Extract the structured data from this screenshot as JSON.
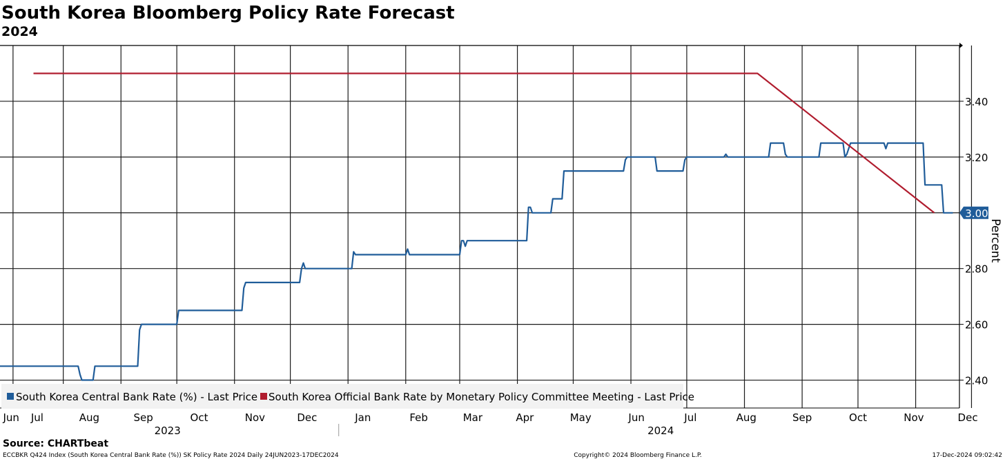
{
  "title": "South Korea Bloomberg Policy Rate Forecast",
  "subtitle": "2024",
  "source": "Source: CHARTbeat",
  "footer": {
    "left": "ECCBKR Q424 Index (South Korea Central Bank Rate (%)) SK Policy Rate 2024  Daily 24JUN2023-17DEC2024",
    "center": "Copyright© 2024 Bloomberg Finance L.P.",
    "right": "17-Dec-2024 09:02:42"
  },
  "chart_data": {
    "type": "line",
    "ylabel": "Percent",
    "ylim": [
      2.3,
      3.6
    ],
    "yticks": [
      2.4,
      2.6,
      2.8,
      3.0,
      3.2,
      3.4
    ],
    "ytick_labels": [
      "2.40",
      "2.60",
      "2.80",
      "3.00",
      "3.20",
      "3.40"
    ],
    "xlim": [
      0,
      540
    ],
    "month_labels": [
      {
        "label": "Jun",
        "x": 6
      },
      {
        "label": "Jul",
        "x": 20
      },
      {
        "label": "Aug",
        "x": 48
      },
      {
        "label": "Sep",
        "x": 77
      },
      {
        "label": "Oct",
        "x": 107
      },
      {
        "label": "Nov",
        "x": 137
      },
      {
        "label": "Dec",
        "x": 165
      },
      {
        "label": "Jan",
        "x": 195
      },
      {
        "label": "Feb",
        "x": 225
      },
      {
        "label": "Mar",
        "x": 254
      },
      {
        "label": "Apr",
        "x": 282
      },
      {
        "label": "May",
        "x": 312
      },
      {
        "label": "Jun",
        "x": 342
      },
      {
        "label": "Jul",
        "x": 371
      },
      {
        "label": "Aug",
        "x": 401
      },
      {
        "label": "Sep",
        "x": 431
      },
      {
        "label": "Oct",
        "x": 461
      },
      {
        "label": "Nov",
        "x": 491
      },
      {
        "label": "Dec",
        "x": 520
      }
    ],
    "gridlines_x": [
      7,
      34,
      65,
      95,
      126,
      156,
      187,
      218,
      247,
      278,
      308,
      339,
      369,
      400,
      431,
      461,
      492,
      522
    ],
    "year_labels": [
      {
        "label": "2023",
        "x": 90
      },
      {
        "label": "2024",
        "x": 355
      }
    ],
    "year_divider_x": 182,
    "last_price_label": "3.00",
    "series": [
      {
        "name": "South Korea Central Bank Rate (%) - Last Price",
        "color": "#1f5c99",
        "points": [
          [
            0,
            2.45
          ],
          [
            42,
            2.45
          ],
          [
            43,
            2.42
          ],
          [
            44,
            2.4
          ],
          [
            50,
            2.4
          ],
          [
            51,
            2.45
          ],
          [
            74,
            2.45
          ],
          [
            75,
            2.58
          ],
          [
            76,
            2.6
          ],
          [
            95,
            2.6
          ],
          [
            96,
            2.65
          ],
          [
            130,
            2.65
          ],
          [
            131,
            2.73
          ],
          [
            132,
            2.75
          ],
          [
            161,
            2.75
          ],
          [
            162,
            2.8
          ],
          [
            163,
            2.82
          ],
          [
            164,
            2.8
          ],
          [
            189,
            2.8
          ],
          [
            190,
            2.86
          ],
          [
            191,
            2.85
          ],
          [
            218,
            2.85
          ],
          [
            219,
            2.87
          ],
          [
            220,
            2.85
          ],
          [
            247,
            2.85
          ],
          [
            248,
            2.9
          ],
          [
            249,
            2.9
          ],
          [
            250,
            2.88
          ],
          [
            251,
            2.9
          ],
          [
            283,
            2.9
          ],
          [
            284,
            3.02
          ],
          [
            285,
            3.02
          ],
          [
            286,
            3.0
          ],
          [
            296,
            3.0
          ],
          [
            297,
            3.05
          ],
          [
            302,
            3.05
          ],
          [
            303,
            3.15
          ],
          [
            335,
            3.15
          ],
          [
            336,
            3.19
          ],
          [
            337,
            3.2
          ],
          [
            352,
            3.2
          ],
          [
            353,
            3.15
          ],
          [
            367,
            3.15
          ],
          [
            368,
            3.19
          ],
          [
            369,
            3.2
          ],
          [
            389,
            3.2
          ],
          [
            390,
            3.21
          ],
          [
            391,
            3.2
          ],
          [
            413,
            3.2
          ],
          [
            414,
            3.25
          ],
          [
            421,
            3.25
          ],
          [
            422,
            3.21
          ],
          [
            423,
            3.2
          ],
          [
            440,
            3.2
          ],
          [
            441,
            3.25
          ],
          [
            453,
            3.25
          ],
          [
            454,
            3.2
          ],
          [
            455,
            3.21
          ],
          [
            457,
            3.25
          ],
          [
            475,
            3.25
          ],
          [
            476,
            3.23
          ],
          [
            477,
            3.25
          ],
          [
            496,
            3.25
          ],
          [
            497,
            3.1
          ],
          [
            506,
            3.1
          ],
          [
            507,
            3.0
          ],
          [
            512,
            3.0
          ]
        ]
      },
      {
        "name": "South Korea Official Bank Rate by Monetary Policy Committee Meeting - Last Price",
        "color": "#b01c2e",
        "points": [
          [
            18,
            3.5
          ],
          [
            407,
            3.5
          ],
          [
            502,
            3.0
          ]
        ]
      }
    ]
  }
}
